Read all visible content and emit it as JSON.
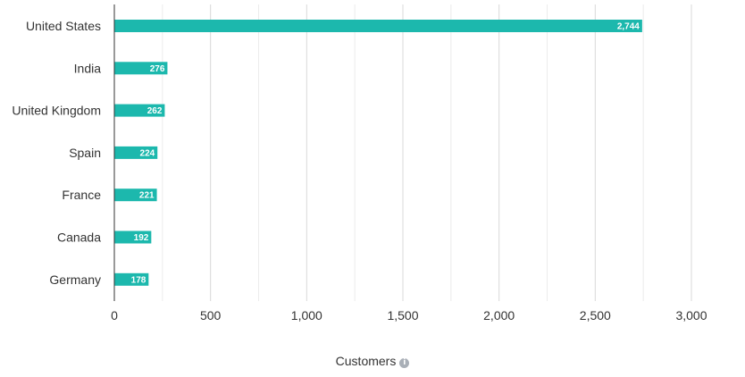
{
  "chart_data": {
    "type": "bar",
    "orientation": "horizontal",
    "categories": [
      "United States",
      "India",
      "United Kingdom",
      "Spain",
      "France",
      "Canada",
      "Germany"
    ],
    "values": [
      2744,
      276,
      262,
      224,
      221,
      192,
      178
    ],
    "value_labels": [
      "2,744",
      "276",
      "262",
      "224",
      "221",
      "192",
      "178"
    ],
    "xlabel": "Customers",
    "xlim": [
      0,
      3000
    ],
    "xticks": [
      0,
      500,
      1000,
      1500,
      2000,
      2500,
      3000
    ],
    "xtick_labels": [
      "0",
      "500",
      "1,000",
      "1,500",
      "2,000",
      "2,500",
      "3,000"
    ],
    "grid": true,
    "bar_color": "#1cb8ad",
    "grid_color": "#e6e6e6",
    "axis_color": "#333333"
  },
  "axis_info_icon": "info-icon",
  "axis_info_glyph": "i"
}
